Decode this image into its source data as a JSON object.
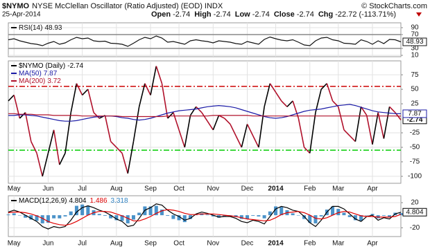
{
  "chart_data": {
    "type": "stock",
    "symbol": "$NYMO",
    "title": "NYSE McClellan Oscillator (Ratio Adjusted) (EOD) INDX",
    "date": "25-Apr-2014",
    "source": "© StockCharts.com",
    "quote": [
      {
        "label": "Open",
        "value": -2.74
      },
      {
        "label": "High",
        "value": -2.74
      },
      {
        "label": "Low",
        "value": -2.74
      },
      {
        "label": "Close",
        "value": -2.74
      },
      {
        "label": "Chg",
        "value": -22.72,
        "change_pct": -113.71,
        "change_pct_label": "(-113.71%)"
      }
    ],
    "categories": [
      null,
      "May",
      null,
      null,
      null,
      null,
      null,
      "Jun",
      null,
      null,
      null,
      null,
      null,
      "Jul",
      null,
      null,
      null,
      null,
      null,
      "Aug",
      null,
      null,
      null,
      null,
      null,
      "Sep",
      null,
      null,
      null,
      null,
      "Oct",
      null,
      null,
      null,
      null,
      null,
      "Nov",
      null,
      null,
      null,
      null,
      null,
      "Dec",
      null,
      null,
      null,
      null,
      "2014",
      null,
      null,
      null,
      null,
      null,
      "Feb",
      null,
      null,
      null,
      null,
      "Mar",
      null,
      null,
      null,
      null,
      null,
      "Apr",
      null,
      null,
      null,
      null,
      null
    ],
    "panels": [
      {
        "type": "line",
        "ylim": [
          6,
          104
        ],
        "yticks": [
          90,
          70,
          30,
          10
        ],
        "grid": true,
        "hlines": [
          {
            "value": 70,
            "color": "#888888",
            "dash": ""
          },
          {
            "value": 30,
            "color": "#888888",
            "dash": ""
          }
        ],
        "series": [
          {
            "name": "RSI(14)",
            "color": "#111111",
            "box": true,
            "values": [
              55,
              58,
              52,
              48,
              44,
              42,
              38,
              45,
              50,
              42,
              46,
              55,
              62,
              58,
              60,
              52,
              50,
              51,
              45,
              44,
              42,
              36,
              45,
              55,
              62,
              58,
              66,
              60,
              48,
              50,
              46,
              42,
              52,
              55,
              52,
              50,
              46,
              52,
              50,
              48,
              44,
              42,
              50,
              46,
              42,
              56,
              63,
              58,
              54,
              52,
              55,
              48,
              40,
              38,
              52,
              60,
              62,
              55,
              52,
              45,
              44,
              42,
              55,
              50,
              42,
              52,
              44,
              56,
              55,
              48.93
            ]
          }
        ]
      },
      {
        "type": "line",
        "ylim": [
          -112,
          99
        ],
        "yticks": [
          75,
          50,
          25,
          -25,
          -50,
          -75,
          -100
        ],
        "grid": true,
        "hlines": [
          {
            "value": 55,
            "color": "#cc0000",
            "dash": "8 3 2 3"
          },
          {
            "value": -55,
            "color": "#00cc00",
            "dash": "8 3 2 3"
          }
        ],
        "series": [
          {
            "name": "$NYMO (Daily)",
            "color": "#000000",
            "up_color": "#000000",
            "down_color": "#b0102a",
            "box": true,
            "values": [
              30,
              40,
              0,
              10,
              -40,
              -60,
              -100,
              -60,
              -20,
              -80,
              -60,
              10,
              60,
              40,
              50,
              10,
              0,
              5,
              -40,
              -50,
              -60,
              -95,
              -40,
              20,
              60,
              40,
              90,
              60,
              0,
              10,
              -20,
              -50,
              5,
              20,
              10,
              -5,
              -20,
              5,
              0,
              -10,
              -30,
              -50,
              -10,
              -30,
              -50,
              20,
              60,
              45,
              30,
              20,
              30,
              0,
              -50,
              -60,
              10,
              50,
              60,
              30,
              20,
              -20,
              -30,
              -40,
              20,
              5,
              -45,
              10,
              -35,
              20,
              10,
              -2.74
            ]
          },
          {
            "name": "MA(50)",
            "color": "#1a1aa6",
            "box": true,
            "values": [
              5,
              5,
              6,
              6,
              5,
              4,
              2,
              0,
              -2,
              -4,
              -5,
              -5,
              -4,
              -2,
              0,
              2,
              3,
              4,
              4,
              3,
              1,
              0,
              -2,
              -3,
              -2,
              0,
              3,
              6,
              9,
              11,
              13,
              14,
              15,
              16,
              18,
              20,
              21,
              22,
              21,
              20,
              18,
              15,
              12,
              9,
              6,
              3,
              1,
              0,
              1,
              3,
              6,
              9,
              12,
              14,
              15,
              16,
              18,
              20,
              22,
              23,
              24,
              22,
              19,
              16,
              13,
              11,
              10,
              9,
              8,
              7.87
            ]
          },
          {
            "name": "MA(200)",
            "color": "#b0102a",
            "box": false,
            "values": [
              8,
              8,
              7,
              7,
              7,
              6,
              6,
              6,
              5,
              5,
              5,
              5,
              5,
              4,
              4,
              4,
              4,
              4,
              4,
              4,
              3,
              3,
              3,
              3,
              3,
              3,
              3,
              3,
              4,
              4,
              4,
              4,
              4,
              4,
              4,
              4,
              5,
              5,
              5,
              5,
              5,
              5,
              5,
              4,
              4,
              4,
              4,
              4,
              4,
              4,
              4,
              4,
              4,
              4,
              4,
              4,
              4,
              4,
              4,
              4,
              4,
              4,
              4,
              4,
              4,
              4,
              4,
              4,
              4,
              3.72
            ]
          }
        ]
      },
      {
        "type": "line",
        "ylim": [
          -34,
          31
        ],
        "yticks": [
          20,
          -20
        ],
        "grid": true,
        "hlines": [],
        "series": [
          {
            "color": "#2a7fc0",
            "style": "bar",
            "values": [
              1,
              3,
              0,
              -4,
              -7,
              -9,
              -13,
              -12,
              -5,
              -5,
              -2,
              6,
              15,
              17,
              15,
              8,
              2,
              -1,
              -5,
              -8,
              -9,
              -13,
              -7,
              4,
              14,
              14,
              15,
              9,
              -1,
              -6,
              -8,
              -11,
              -6,
              1,
              3,
              1,
              -2,
              -4,
              -2,
              -1,
              -3,
              -6,
              -6,
              -1,
              -2,
              -5,
              6,
              14,
              13,
              8,
              3,
              0,
              -6,
              -12,
              -13,
              -2,
              9,
              14,
              10,
              4,
              -3,
              -8,
              -9,
              0,
              2,
              -5,
              -1,
              -3,
              4,
              3.318
            ]
          },
          {
            "name": "MACD(12,26,9)",
            "color": "#000000",
            "box": true,
            "values": [
              5,
              8,
              5,
              0,
              -5,
              -10,
              -18,
              -22,
              -18,
              -20,
              -18,
              -8,
              5,
              12,
              15,
              12,
              8,
              5,
              0,
              -6,
              -10,
              -18,
              -16,
              -5,
              8,
              12,
              18,
              16,
              8,
              2,
              -2,
              -8,
              -5,
              2,
              5,
              3,
              0,
              -3,
              -2,
              -2,
              -5,
              -10,
              -12,
              -8,
              -10,
              -14,
              -2,
              10,
              14,
              12,
              8,
              6,
              -2,
              -12,
              -18,
              -8,
              5,
              14,
              14,
              10,
              2,
              -6,
              -10,
              -2,
              0,
              -8,
              -4,
              -6,
              2,
              4.804
            ]
          },
          {
            "color": "#e00000",
            "values": [
              4,
              5,
              5,
              4,
              2,
              -1,
              -5,
              -10,
              -13,
              -15,
              -16,
              -14,
              -10,
              -5,
              0,
              4,
              6,
              6,
              5,
              2,
              -1,
              -5,
              -9,
              -9,
              -6,
              -2,
              3,
              7,
              9,
              8,
              6,
              3,
              1,
              1,
              2,
              2,
              2,
              1,
              0,
              -1,
              -2,
              -4,
              -6,
              -7,
              -8,
              -9,
              -8,
              -4,
              1,
              4,
              5,
              6,
              4,
              0,
              -5,
              -6,
              -4,
              0,
              4,
              6,
              5,
              2,
              -1,
              -2,
              -2,
              -3,
              -3,
              -3,
              -2,
              1.486
            ]
          }
        ]
      }
    ]
  }
}
